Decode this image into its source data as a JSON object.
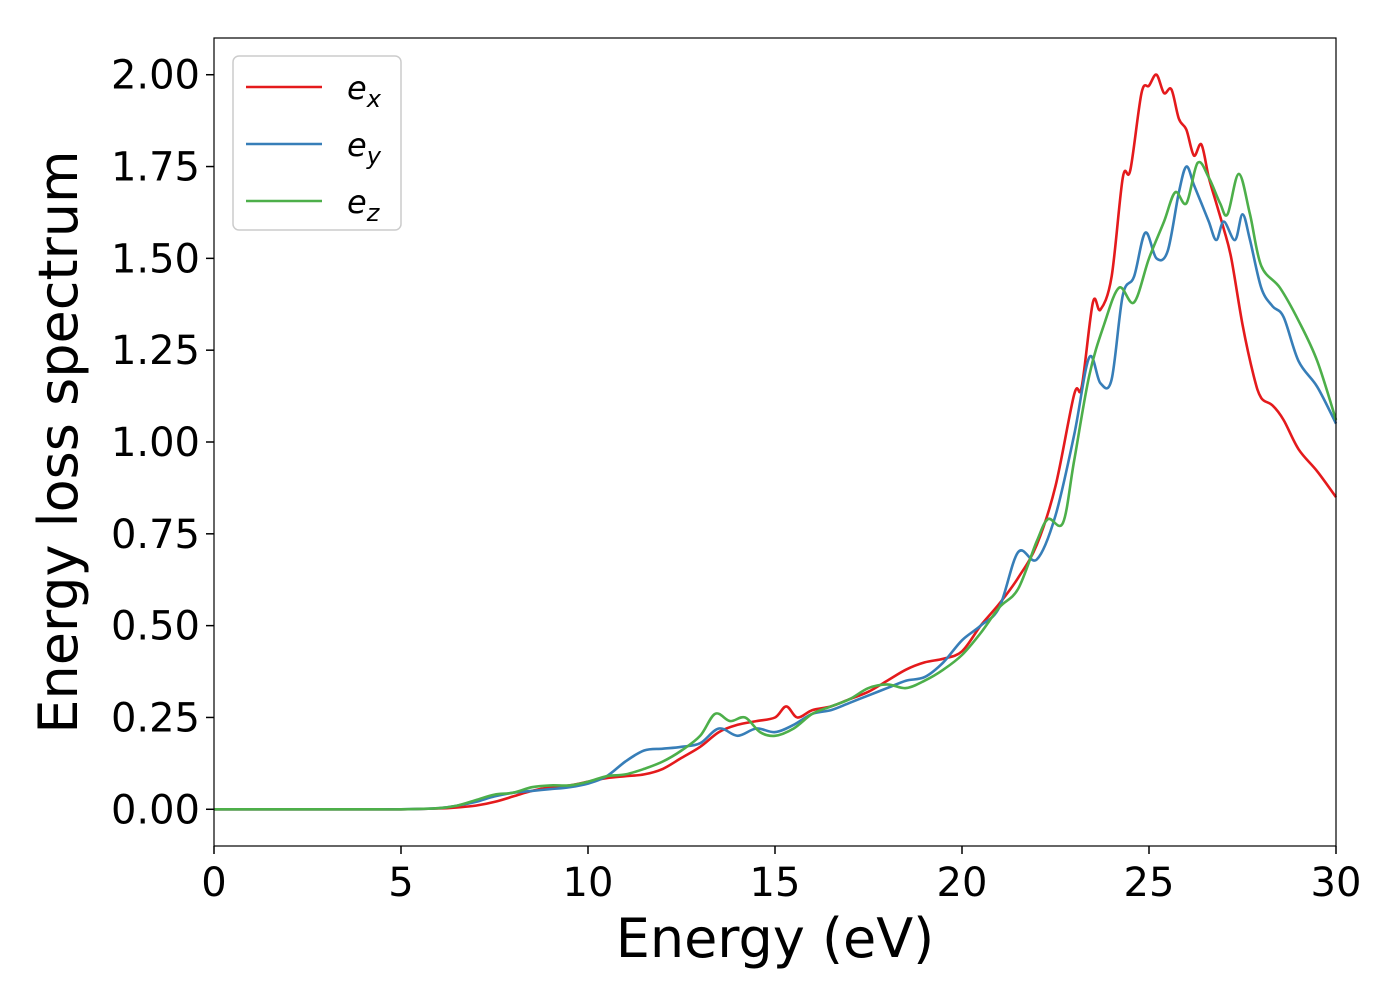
{
  "chart_data": {
    "type": "line",
    "xlabel": "Energy (eV)",
    "ylabel": "Energy loss spectrum",
    "xlim": [
      0,
      30
    ],
    "ylim": [
      -0.1,
      2.1
    ],
    "xticks": [
      "0",
      "5",
      "10",
      "15",
      "20",
      "25",
      "30"
    ],
    "yticks": [
      "0.00",
      "0.25",
      "0.50",
      "0.75",
      "1.00",
      "1.25",
      "1.50",
      "1.75",
      "2.00"
    ],
    "grid": false,
    "legend_position": "top-left",
    "series": [
      {
        "name": "e",
        "subscript": "x",
        "color": "#e41a1c",
        "x": [
          0,
          2,
          4,
          5,
          6,
          6.5,
          7,
          7.5,
          8,
          8.5,
          9,
          9.5,
          10,
          10.5,
          11,
          11.5,
          12,
          12.5,
          13,
          13.5,
          14,
          14.5,
          15,
          15.3,
          15.6,
          16,
          16.5,
          17,
          17.5,
          18,
          18.5,
          19,
          19.5,
          20,
          20.5,
          21,
          21.5,
          22,
          22.5,
          23,
          23.2,
          23.5,
          23.7,
          24,
          24.3,
          24.5,
          24.8,
          25,
          25.2,
          25.4,
          25.6,
          25.8,
          26,
          26.2,
          26.4,
          26.6,
          26.8,
          27,
          27.2,
          27.5,
          27.8,
          28,
          28.3,
          28.6,
          29,
          29.5,
          30
        ],
        "values": [
          0.0,
          0.0,
          0.0,
          0.0,
          0.002,
          0.005,
          0.01,
          0.02,
          0.035,
          0.05,
          0.06,
          0.065,
          0.075,
          0.085,
          0.09,
          0.095,
          0.11,
          0.14,
          0.17,
          0.21,
          0.23,
          0.24,
          0.25,
          0.28,
          0.25,
          0.27,
          0.28,
          0.3,
          0.32,
          0.35,
          0.38,
          0.4,
          0.41,
          0.43,
          0.5,
          0.56,
          0.63,
          0.72,
          0.88,
          1.13,
          1.15,
          1.38,
          1.36,
          1.45,
          1.72,
          1.74,
          1.95,
          1.97,
          2.0,
          1.95,
          1.96,
          1.88,
          1.85,
          1.78,
          1.81,
          1.72,
          1.65,
          1.58,
          1.5,
          1.32,
          1.18,
          1.12,
          1.1,
          1.06,
          0.98,
          0.92,
          0.85
        ]
      },
      {
        "name": "e",
        "subscript": "y",
        "color": "#377eb8",
        "x": [
          0,
          2,
          4,
          5,
          6,
          6.5,
          7,
          7.5,
          8,
          8.5,
          9,
          9.5,
          10,
          10.5,
          11,
          11.5,
          12,
          12.5,
          13,
          13.5,
          14,
          14.5,
          15,
          15.5,
          16,
          16.5,
          17,
          17.5,
          18,
          18.5,
          19,
          19.5,
          20,
          20.5,
          21,
          21.5,
          22,
          22.5,
          23,
          23.4,
          23.7,
          24,
          24.3,
          24.6,
          24.9,
          25.2,
          25.5,
          25.8,
          26,
          26.2,
          26.4,
          26.6,
          26.8,
          27,
          27.3,
          27.5,
          27.7,
          28,
          28.3,
          28.6,
          29,
          29.5,
          30
        ],
        "values": [
          0.0,
          0.0,
          0.0,
          0.0,
          0.003,
          0.01,
          0.02,
          0.035,
          0.045,
          0.05,
          0.055,
          0.06,
          0.07,
          0.09,
          0.13,
          0.16,
          0.165,
          0.17,
          0.18,
          0.22,
          0.2,
          0.22,
          0.21,
          0.23,
          0.26,
          0.27,
          0.29,
          0.31,
          0.33,
          0.35,
          0.36,
          0.4,
          0.46,
          0.5,
          0.55,
          0.7,
          0.68,
          0.8,
          1.02,
          1.23,
          1.16,
          1.17,
          1.4,
          1.45,
          1.57,
          1.5,
          1.52,
          1.68,
          1.75,
          1.7,
          1.65,
          1.6,
          1.55,
          1.6,
          1.55,
          1.62,
          1.55,
          1.42,
          1.37,
          1.34,
          1.22,
          1.15,
          1.05
        ]
      },
      {
        "name": "e",
        "subscript": "z",
        "color": "#4daf4a",
        "x": [
          0,
          2,
          4,
          5,
          6,
          6.5,
          7,
          7.5,
          8,
          8.5,
          9,
          9.5,
          10,
          10.5,
          11,
          11.5,
          12,
          12.5,
          13,
          13.4,
          13.8,
          14.2,
          14.6,
          15,
          15.5,
          16,
          16.5,
          17,
          17.5,
          18,
          18.5,
          19,
          19.5,
          20,
          20.5,
          21,
          21.5,
          22,
          22.3,
          22.7,
          23,
          23.4,
          23.8,
          24.2,
          24.6,
          25,
          25.4,
          25.7,
          26,
          26.3,
          26.6,
          26.9,
          27.1,
          27.4,
          27.7,
          28,
          28.5,
          29,
          29.5,
          30
        ],
        "values": [
          0.0,
          0.0,
          0.0,
          0.0,
          0.003,
          0.01,
          0.025,
          0.04,
          0.045,
          0.06,
          0.065,
          0.065,
          0.075,
          0.09,
          0.095,
          0.11,
          0.13,
          0.16,
          0.2,
          0.26,
          0.24,
          0.25,
          0.21,
          0.2,
          0.22,
          0.26,
          0.28,
          0.3,
          0.33,
          0.34,
          0.33,
          0.35,
          0.38,
          0.42,
          0.48,
          0.55,
          0.6,
          0.73,
          0.79,
          0.78,
          0.95,
          1.18,
          1.32,
          1.42,
          1.38,
          1.5,
          1.6,
          1.68,
          1.65,
          1.76,
          1.72,
          1.65,
          1.62,
          1.73,
          1.62,
          1.48,
          1.42,
          1.33,
          1.22,
          1.06
        ]
      }
    ]
  }
}
